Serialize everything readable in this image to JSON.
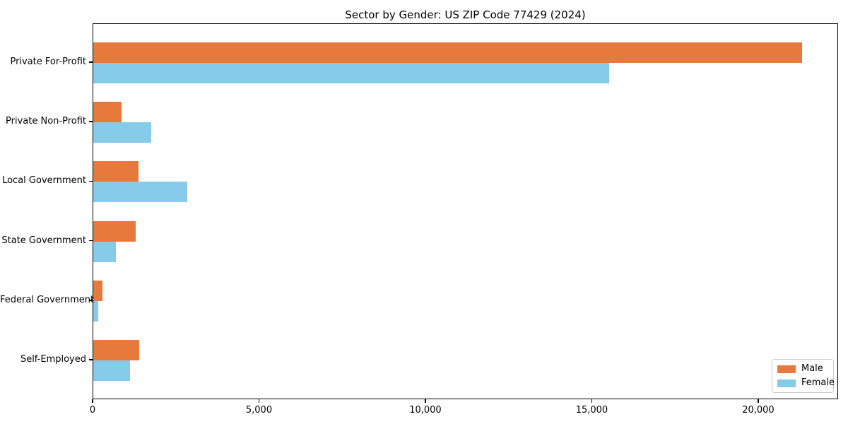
{
  "title": "Sector by Gender: US ZIP Code 77429 (2024)",
  "chart_data": {
    "type": "bar",
    "orientation": "horizontal",
    "title": "Sector by Gender: US ZIP Code 77429 (2024)",
    "categories": [
      "Private For-Profit",
      "Private Non-Profit",
      "Local Government",
      "State Government",
      "Federal Government",
      "Self-Employed"
    ],
    "series": [
      {
        "name": "Male",
        "color": "#e8793d",
        "values": [
          21300,
          850,
          1360,
          1280,
          280,
          1380
        ]
      },
      {
        "name": "Female",
        "color": "#86cbea",
        "values": [
          15500,
          1740,
          2820,
          680,
          150,
          1100
        ]
      }
    ],
    "xlabel": "",
    "ylabel": "",
    "xlim": [
      0,
      22400
    ],
    "xticks": [
      0,
      5000,
      10000,
      15000,
      20000
    ],
    "xtick_labels": [
      "0",
      "5,000",
      "10,000",
      "15,000",
      "20,000"
    ],
    "grid": false,
    "legend_position": "lower right",
    "axis_color": "#000000",
    "background_color": "#ffffff"
  }
}
